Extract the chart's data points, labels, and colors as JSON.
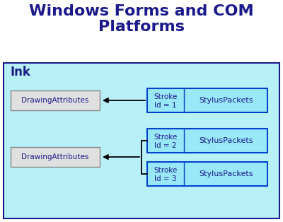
{
  "title_line1": "Windows Forms and COM",
  "title_line2": "Platforms",
  "title_color": "#1a1a8c",
  "title_fontsize": 16,
  "ink_label": "Ink",
  "ink_label_color": "#1a1a8c",
  "ink_label_fontsize": 12,
  "bg_color": "#ffffff",
  "ink_box_facecolor": "#b8f0f8",
  "ink_box_edgecolor": "#1a1a8c",
  "stroke_box_facecolor": "#99e8f8",
  "stroke_box_edgecolor": "#0044cc",
  "da_box_facecolor": "#e0e0e0",
  "da_box_edgecolor": "#888888",
  "da_text_color": "#1a1a8c",
  "stroke_text_color": "#1a1a8c",
  "sp_text_color": "#1a1a8c",
  "arrow_color": "#000000",
  "da_label": "DrawingAttributes"
}
